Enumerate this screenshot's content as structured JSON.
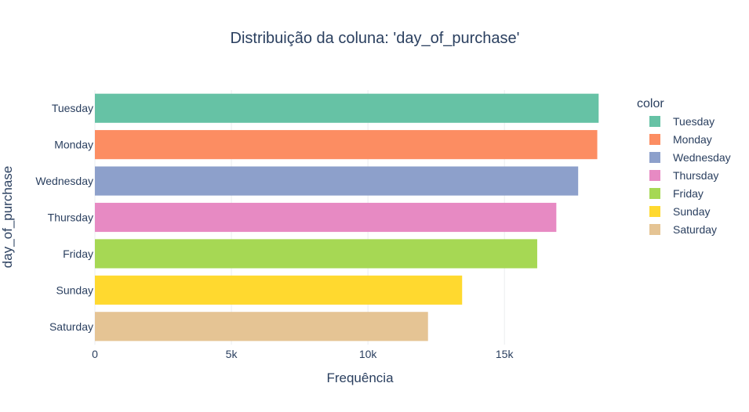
{
  "chart_data": {
    "type": "bar",
    "orientation": "horizontal",
    "title": "Distribuição da coluna: 'day_of_purchase'",
    "xlabel": "Frequência",
    "ylabel": "day_of_purchase",
    "xlim": [
      0,
      18700
    ],
    "x_ticks": [
      0,
      5000,
      10000,
      15000
    ],
    "x_tick_labels": [
      "0",
      "5k",
      "10k",
      "15k"
    ],
    "grid": true,
    "categories": [
      "Tuesday",
      "Monday",
      "Wednesday",
      "Thursday",
      "Friday",
      "Sunday",
      "Saturday"
    ],
    "values": [
      18450,
      18400,
      17700,
      16900,
      16200,
      13450,
      12200
    ],
    "colors": [
      "#66c2a5",
      "#fc8d62",
      "#8da0cb",
      "#e78ac3",
      "#a6d854",
      "#ffd92f",
      "#e5c494"
    ],
    "legend": {
      "title": "color",
      "placement": "right",
      "entries": [
        "Tuesday",
        "Monday",
        "Wednesday",
        "Thursday",
        "Friday",
        "Sunday",
        "Saturday"
      ]
    }
  }
}
